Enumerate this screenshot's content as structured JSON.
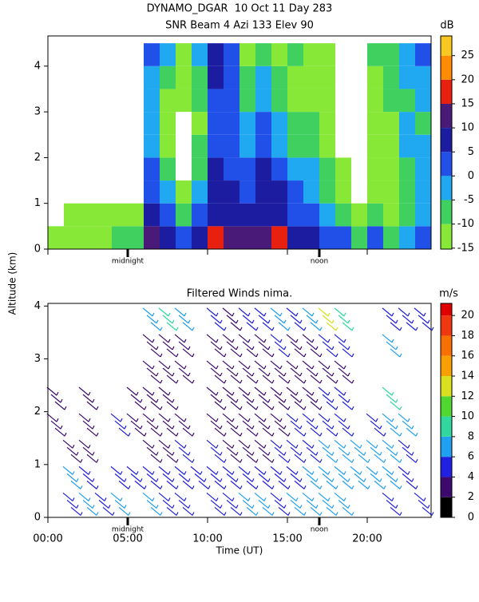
{
  "chart_data": [
    {
      "type": "heatmap",
      "title": "DYNAMO_DGAR  10 Oct 11 Day 283",
      "subtitle": "SNR Beam 4 Azi 133 Elev 90",
      "ylabel": "Altitude (km)",
      "xlim": [
        0,
        24
      ],
      "xticks": [
        0,
        5,
        10,
        15,
        20
      ],
      "ylim": [
        0,
        4.66
      ],
      "yticks": [
        0,
        1,
        2,
        3,
        4
      ],
      "annotations": [
        {
          "text": "midnight",
          "x": 5
        },
        {
          "text": "noon",
          "x": 17
        }
      ],
      "time_bins": [
        0,
        1,
        2,
        3,
        4,
        5,
        6,
        7,
        8,
        9,
        10,
        11,
        12,
        13,
        14,
        15,
        16,
        17,
        18,
        19,
        20,
        21,
        22,
        23,
        24
      ],
      "altitude_bins": [
        0,
        0.5,
        1,
        1.5,
        2,
        2.5,
        3,
        3.5,
        4,
        4.5
      ],
      "values": [
        [
          -12,
          null,
          null,
          null,
          null,
          null,
          null,
          null,
          null
        ],
        [
          -10,
          -13,
          null,
          null,
          null,
          null,
          null,
          null,
          null
        ],
        [
          -10,
          -12,
          null,
          null,
          null,
          null,
          null,
          null,
          null
        ],
        [
          -10,
          -12,
          null,
          null,
          null,
          null,
          null,
          null,
          null
        ],
        [
          -8,
          -13,
          null,
          null,
          null,
          null,
          null,
          null,
          null
        ],
        [
          -5,
          -12,
          null,
          null,
          null,
          null,
          null,
          null,
          null
        ],
        [
          15,
          8,
          5,
          3,
          0,
          -3,
          -2,
          0,
          2
        ],
        [
          10,
          5,
          0,
          -5,
          -10,
          -12,
          -10,
          -5,
          -3
        ],
        [
          5,
          -5,
          -12,
          null,
          null,
          null,
          -12,
          -12,
          -12
        ],
        [
          10,
          3,
          -3,
          -5,
          -8,
          -10,
          -8,
          -5,
          -3
        ],
        [
          18,
          10,
          8,
          6,
          5,
          3,
          5,
          8,
          10
        ],
        [
          12,
          8,
          6,
          4,
          3,
          2,
          3,
          5,
          5
        ],
        [
          12,
          8,
          5,
          3,
          0,
          -2,
          -5,
          -8,
          -12
        ],
        [
          15,
          10,
          8,
          6,
          4,
          2,
          0,
          -3,
          -5
        ],
        [
          18,
          8,
          6,
          3,
          0,
          -3,
          -5,
          -8,
          -10
        ],
        [
          10,
          5,
          3,
          0,
          -5,
          -8,
          -10,
          -10,
          -8
        ],
        [
          8,
          3,
          0,
          -3,
          -5,
          -8,
          -10,
          -12,
          -12
        ],
        [
          5,
          -2,
          -5,
          -8,
          -10,
          -12,
          -12,
          -12,
          -10
        ],
        [
          3,
          -5,
          -10,
          -12,
          null,
          null,
          null,
          null,
          null
        ],
        [
          -5,
          -12,
          null,
          null,
          null,
          null,
          null,
          null,
          null
        ],
        [
          5,
          -5,
          -10,
          -10,
          -12,
          -12,
          -10,
          -10,
          -8
        ],
        [
          -5,
          -12,
          -12,
          -10,
          -10,
          -10,
          -8,
          -5,
          -5
        ],
        [
          0,
          -8,
          -5,
          -5,
          -3,
          -3,
          -5,
          -3,
          0
        ],
        [
          5,
          -3,
          -3,
          0,
          -3,
          -5,
          -3,
          0,
          2
        ]
      ],
      "colorbar": {
        "label": "dB",
        "lim": [
          -15.2,
          29.1
        ],
        "ticks": [
          -15,
          -10,
          -5,
          0,
          5,
          10,
          15,
          20,
          25
        ],
        "bounds": [
          -15.2,
          -10,
          -5,
          0,
          5,
          10,
          15,
          20,
          25,
          29.1
        ],
        "colors": [
          "#88e838",
          "#40d060",
          "#20a8f0",
          "#2050e8",
          "#1c1ca0",
          "#4a1a78",
          "#e82010",
          "#ff8c00",
          "#f8c820"
        ]
      }
    },
    {
      "type": "barbs",
      "title": "Filtered Winds nima.",
      "xlabel": "Time (UT)",
      "xlim": [
        0,
        24
      ],
      "xticks": [
        {
          "value": 0,
          "label": "00:00"
        },
        {
          "value": 5,
          "label": "05:00"
        },
        {
          "value": 10,
          "label": "10:00"
        },
        {
          "value": 15,
          "label": "15:00"
        },
        {
          "value": 20,
          "label": "20:00"
        }
      ],
      "ylim": [
        0,
        4.05
      ],
      "yticks": [
        0,
        1,
        2,
        3,
        4
      ],
      "annotations": [
        {
          "text": "midnight",
          "x": 5
        },
        {
          "text": "noon",
          "x": 17
        }
      ],
      "time_bins": [
        0,
        1,
        2,
        3,
        4,
        5,
        6,
        7,
        8,
        9,
        10,
        11,
        12,
        13,
        14,
        15,
        16,
        17,
        18,
        19,
        20,
        21,
        22,
        23,
        24
      ],
      "altitude_bins": [
        0,
        0.5,
        1,
        1.5,
        2,
        2.5,
        3,
        3.5,
        4
      ],
      "values": [
        [
          null,
          null,
          null,
          3,
          3,
          null,
          null,
          null
        ],
        [
          6,
          7,
          3,
          null,
          null,
          null,
          null,
          null
        ],
        [
          7,
          6,
          4,
          3,
          3,
          null,
          null,
          null
        ],
        [
          6,
          null,
          null,
          null,
          null,
          null,
          null,
          null
        ],
        [
          8,
          5,
          null,
          5,
          null,
          null,
          null,
          null
        ],
        [
          null,
          6,
          null,
          4,
          3,
          null,
          null,
          null
        ],
        [
          7,
          6,
          4,
          4,
          3,
          3,
          4,
          8
        ],
        [
          6,
          5,
          4,
          4,
          3,
          4,
          4,
          10
        ],
        [
          6,
          6,
          5,
          4,
          null,
          3,
          4,
          7
        ],
        [
          null,
          6,
          null,
          null,
          null,
          null,
          null,
          null
        ],
        [
          6,
          5,
          5,
          4,
          3,
          3,
          3,
          5
        ],
        [
          6,
          5,
          4,
          3,
          3,
          3,
          3,
          4
        ],
        [
          7,
          5,
          4,
          3,
          3,
          3,
          4,
          6
        ],
        [
          7,
          6,
          4,
          3,
          3,
          3,
          4,
          5
        ],
        [
          6,
          6,
          5,
          4,
          3,
          4,
          5,
          8
        ],
        [
          7,
          6,
          6,
          5,
          4,
          3,
          3,
          5
        ],
        [
          7,
          7,
          6,
          6,
          4,
          3,
          4,
          8
        ],
        [
          8,
          8,
          7,
          6,
          5,
          3,
          6,
          14
        ],
        [
          7,
          8,
          7,
          6,
          6,
          4,
          5,
          10
        ],
        [
          null,
          8,
          8,
          null,
          null,
          null,
          null,
          null
        ],
        [
          null,
          7,
          8,
          6,
          null,
          null,
          null,
          null
        ],
        [
          6,
          7,
          8,
          8,
          10,
          null,
          8,
          6
        ],
        [
          null,
          6,
          6,
          7,
          null,
          null,
          null,
          6
        ],
        [
          5,
          null,
          null,
          null,
          null,
          null,
          null,
          6
        ]
      ],
      "colorbar": {
        "label": "m/s",
        "lim": [
          0,
          21.2
        ],
        "ticks": [
          0,
          2,
          4,
          6,
          8,
          10,
          12,
          14,
          16,
          18,
          20
        ],
        "bounds": [
          0,
          2,
          4,
          6,
          8,
          10,
          12,
          14,
          16,
          18,
          20,
          21.2
        ],
        "colors": [
          "#000000",
          "#3c0a6e",
          "#2020e0",
          "#20a0f0",
          "#30d8a0",
          "#50d830",
          "#d8e020",
          "#f8a000",
          "#f87000",
          "#f03810",
          "#e00000"
        ]
      }
    }
  ]
}
